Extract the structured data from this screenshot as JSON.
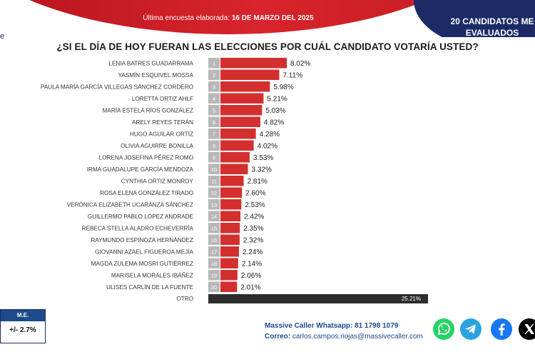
{
  "header": {
    "date_prefix": "Última encuesta elaborada:",
    "date_value": "16 DE MARZO DEL 2025",
    "badge_line1": "20 CANDIDATOS ME",
    "badge_line2": "EVALUADOS",
    "left_mark": "e"
  },
  "question": "¿SI EL DÍA DE HOY FUERAN LAS ELECCIONES POR CUÁL CANDIDATO VOTARÍA USTED?",
  "chart_data": {
    "type": "bar",
    "orientation": "horizontal",
    "categories": [
      "LENIA BATRES GUADARRAMA",
      "YASMÍN ESQUIVEL MOSSA",
      "PAULA MARÍA GARCÍA VILLEGAS SÁNCHEZ CORDERO",
      "LORETTA ORTIZ AHLF",
      "MARÍA ESTELA RÍOS GONZÁLEZ",
      "ARELY REYES TERÁN",
      "HUGO AGUILAR ORTIZ",
      "OLIVIA AGUIRRE BONILLA",
      "LORENA JOSEFINA PÉREZ ROMO",
      "IRMA GUADALUPE GARCÍA MENDOZA",
      "CYNTHIA ORTIZ MONROY",
      "ROSA ELENA GONZÁLEZ TIRADO",
      "VERÓNICA ELIZABETH UCARANZA SÁNCHEZ",
      "GUILLERMO PABLO LÓPEZ ANDRADE",
      "REBECA STELLA ALADRO ECHEVERRÍA",
      "RAYMUNDO ESPINOZA HERNÁNDEZ",
      "GIOVANNI AZAEL FIGUEROA MEJÍA",
      "MAGDA ZULEMA MOSRI GUTIÉRREZ",
      "MARISELA MORALES IBÁÑEZ",
      "ULISES CARLÍN DE LA FUENTE"
    ],
    "ranks": [
      "1",
      "2",
      "3",
      "4",
      "5",
      "6",
      "7",
      "8",
      "9",
      "10",
      "11",
      "12",
      "13",
      "14",
      "15",
      "16",
      "17",
      "18",
      "19",
      "20"
    ],
    "values": [
      8.02,
      7.11,
      5.98,
      5.21,
      5.03,
      4.82,
      4.28,
      4.02,
      3.53,
      3.32,
      2.81,
      2.6,
      2.53,
      2.42,
      2.35,
      2.32,
      2.24,
      2.14,
      2.06,
      2.01
    ],
    "value_labels": [
      "8.02%",
      "7.11%",
      "5.98%",
      "5.21%",
      "5.03%",
      "4.82%",
      "4.28%",
      "4.02%",
      "3.53%",
      "3.32%",
      "2.81%",
      "2.60%",
      "2.53%",
      "2.42%",
      "2.35%",
      "2.32%",
      "2.24%",
      "2.14%",
      "2.06%",
      "2.01%"
    ],
    "other_label": "OTRO",
    "other_value": 25.21,
    "other_value_label": "25.21%",
    "bar_color": "#d32f2f",
    "other_color": "#2d2d2d",
    "rank_color": "#b8b8b8"
  },
  "margin_of_error": {
    "header": "M.E.",
    "value": "+/- 2.7%"
  },
  "contact": {
    "whatsapp_label": "Massive Caller Whatsapp:",
    "whatsapp_value": "81 1798 1079",
    "email_label": "Correo:",
    "email_value": "carlos.campos.riojas@massivecaller.com"
  },
  "social": {
    "whatsapp_color": "#25d366",
    "telegram_color": "#2aa3df",
    "facebook_color": "#1877f2",
    "x_color": "#000000"
  }
}
